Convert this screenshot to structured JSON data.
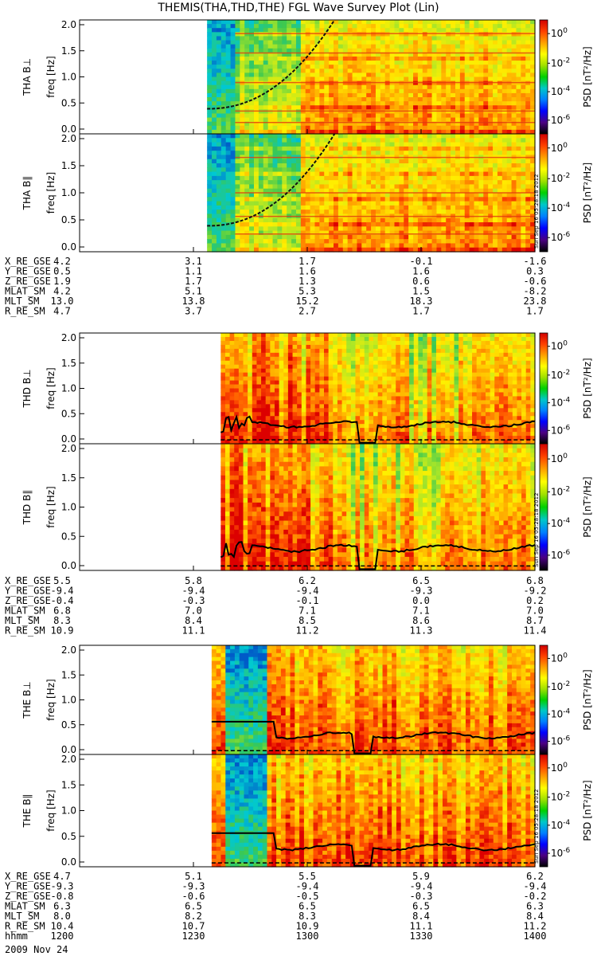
{
  "title": "THEMIS(THA,THD,THE) FGL Wave Survey Plot (Lin)",
  "colors": {
    "colorbar": [
      "#000000",
      "#4b0082",
      "#0000ff",
      "#0080ff",
      "#00c8c8",
      "#00d000",
      "#a0e000",
      "#ffff00",
      "#ffa000",
      "#ff4000",
      "#d00000"
    ]
  },
  "chart_data": [
    {
      "type": "heatmap",
      "groups": [
        {
          "id": "tha",
          "panels": [
            {
              "ylabel_line1": "THA B⊥",
              "ylabel_line2": "freq [Hz]"
            },
            {
              "ylabel_line1": "THA B∥",
              "ylabel_line2": "freq [Hz]"
            }
          ],
          "yticks": [
            "0.0",
            "0.5",
            "1.0",
            "1.5",
            "2.0"
          ],
          "ylim": [
            0,
            2.0
          ],
          "data_start_fraction": 0.28,
          "overlay_curve": "rising-dashed",
          "stamp": "Sun Sep 16 05:28:18 2012",
          "ephem": {
            "rows": [
              {
                "label": "X_RE_GSE",
                "values": [
                  "4.2",
                  "3.1",
                  "1.7",
                  "-0.1",
                  "-1.6"
                ]
              },
              {
                "label": "Y_RE_GSE",
                "values": [
                  "0.5",
                  "1.1",
                  "1.6",
                  "1.6",
                  "0.3"
                ]
              },
              {
                "label": "Z_RE_GSE",
                "values": [
                  "1.9",
                  "1.7",
                  "1.3",
                  "0.6",
                  "-0.6"
                ]
              },
              {
                "label": "MLAT_SM",
                "values": [
                  "4.2",
                  "5.1",
                  "5.3",
                  "1.5",
                  "-8.2"
                ]
              },
              {
                "label": "MLT_SM",
                "values": [
                  "13.0",
                  "13.8",
                  "15.2",
                  "18.3",
                  "23.8"
                ]
              },
              {
                "label": "R_RE_SM",
                "values": [
                  "4.7",
                  "3.7",
                  "2.7",
                  "1.7",
                  "1.7"
                ]
              }
            ]
          }
        },
        {
          "id": "thd",
          "panels": [
            {
              "ylabel_line1": "THD B⊥",
              "ylabel_line2": "freq [Hz]"
            },
            {
              "ylabel_line1": "THD B∥",
              "ylabel_line2": "freq [Hz]"
            }
          ],
          "yticks": [
            "0.0",
            "0.5",
            "1.0",
            "1.5",
            "2.0"
          ],
          "ylim": [
            0,
            2.0
          ],
          "data_start_fraction": 0.31,
          "overlay_curve": "gyro-black",
          "stamp": "Sun Sep 16 05:28:18 2012",
          "ephem": {
            "rows": [
              {
                "label": "X_RE_GSE",
                "values": [
                  "5.5",
                  "5.8",
                  "6.2",
                  "6.5",
                  "6.8"
                ]
              },
              {
                "label": "Y_RE_GSE",
                "values": [
                  "-9.4",
                  "-9.4",
                  "-9.4",
                  "-9.3",
                  "-9.2"
                ]
              },
              {
                "label": "Z_RE_GSE",
                "values": [
                  "-0.4",
                  "-0.3",
                  "-0.1",
                  "0.0",
                  "0.2"
                ]
              },
              {
                "label": "MLAT_SM",
                "values": [
                  "6.8",
                  "7.0",
                  "7.1",
                  "7.1",
                  "7.0"
                ]
              },
              {
                "label": "MLT_SM",
                "values": [
                  "8.3",
                  "8.4",
                  "8.5",
                  "8.6",
                  "8.7"
                ]
              },
              {
                "label": "R_RE_SM",
                "values": [
                  "10.9",
                  "11.1",
                  "11.2",
                  "11.3",
                  "11.4"
                ]
              }
            ]
          }
        },
        {
          "id": "the",
          "panels": [
            {
              "ylabel_line1": "THE B⊥",
              "ylabel_line2": "freq [Hz]"
            },
            {
              "ylabel_line1": "THE B∥",
              "ylabel_line2": "freq [Hz]"
            }
          ],
          "yticks": [
            "0.0",
            "0.5",
            "1.0",
            "1.5",
            "2.0"
          ],
          "ylim": [
            0,
            2.0
          ],
          "data_start_fraction": 0.29,
          "overlay_curve": "gyro-black",
          "stamp": "Sun Sep 16 05:28:18 2012",
          "ephem": {
            "rows": [
              {
                "label": "X_RE_GSE",
                "values": [
                  "4.7",
                  "5.1",
                  "5.5",
                  "5.9",
                  "6.2"
                ]
              },
              {
                "label": "Y_RE_GSE",
                "values": [
                  "-9.3",
                  "-9.3",
                  "-9.4",
                  "-9.4",
                  "-9.4"
                ]
              },
              {
                "label": "Z_RE_GSE",
                "values": [
                  "-0.8",
                  "-0.6",
                  "-0.5",
                  "-0.3",
                  "-0.2"
                ]
              },
              {
                "label": "MLAT_SM",
                "values": [
                  "6.3",
                  "6.5",
                  "6.5",
                  "6.5",
                  "6.3"
                ]
              },
              {
                "label": "MLT_SM",
                "values": [
                  "8.0",
                  "8.2",
                  "8.3",
                  "8.4",
                  "8.4"
                ]
              },
              {
                "label": "R_RE_SM",
                "values": [
                  "10.4",
                  "10.7",
                  "10.9",
                  "11.1",
                  "11.2"
                ]
              },
              {
                "label": "hhmm",
                "values": [
                  "1200",
                  "1230",
                  "1300",
                  "1330",
                  "1400"
                ]
              }
            ]
          }
        }
      ],
      "colorbar": {
        "label": "PSD [nT²/Hz]",
        "ticks": [
          {
            "base": "10",
            "exp": "0"
          },
          {
            "base": "10",
            "exp": "-2"
          },
          {
            "base": "10",
            "exp": "-4"
          },
          {
            "base": "10",
            "exp": "-6"
          }
        ]
      },
      "date": "2009 Nov 24"
    }
  ]
}
